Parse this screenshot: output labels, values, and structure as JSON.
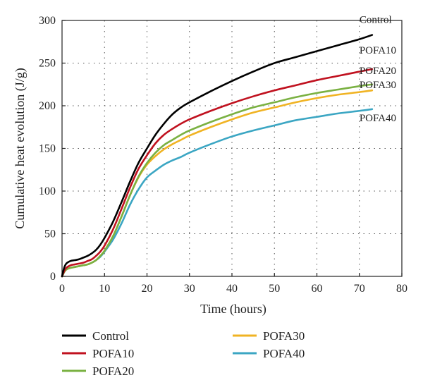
{
  "chart_data": {
    "type": "line",
    "xlabel": "Time (hours)",
    "ylabel": "Cumulative heat evolution (J/g)",
    "xlim": [
      0,
      80
    ],
    "ylim": [
      0,
      300
    ],
    "xticks": [
      0,
      10,
      20,
      30,
      40,
      50,
      60,
      70,
      80
    ],
    "yticks": [
      0,
      50,
      100,
      150,
      200,
      250,
      300
    ],
    "grid": true,
    "legend_position": "bottom",
    "series": [
      {
        "name": "Control",
        "color": "#000000",
        "end_label": "Control",
        "x": [
          0,
          0.5,
          1,
          2,
          3,
          4,
          5,
          6,
          7,
          8,
          9,
          10,
          12,
          14,
          16,
          18,
          20,
          22,
          24,
          26,
          28,
          30,
          35,
          40,
          45,
          50,
          55,
          60,
          65,
          70,
          73
        ],
        "y": [
          0,
          10,
          15,
          18,
          19,
          20,
          22,
          24,
          27,
          31,
          37,
          45,
          64,
          87,
          111,
          133,
          150,
          166,
          179,
          190,
          198,
          204,
          217,
          229,
          240,
          250,
          257,
          264,
          271,
          278,
          283
        ]
      },
      {
        "name": "POFA10",
        "color": "#c0111f",
        "end_label": "POFA10",
        "x": [
          0,
          0.5,
          1,
          2,
          3,
          4,
          5,
          6,
          7,
          8,
          9,
          10,
          12,
          14,
          16,
          18,
          20,
          22,
          24,
          26,
          28,
          30,
          35,
          40,
          45,
          50,
          55,
          60,
          65,
          70,
          73
        ],
        "y": [
          0,
          6,
          10,
          13,
          14,
          15,
          16,
          18,
          20,
          24,
          29,
          36,
          55,
          79,
          104,
          126,
          142,
          156,
          166,
          173,
          179,
          184,
          194,
          203,
          211,
          218,
          224,
          230,
          235,
          240,
          243
        ]
      },
      {
        "name": "POFA20",
        "color": "#7ab142",
        "end_label": "POFA20",
        "x": [
          0,
          0.5,
          1,
          2,
          3,
          4,
          5,
          6,
          7,
          8,
          9,
          10,
          12,
          14,
          16,
          18,
          20,
          22,
          24,
          26,
          28,
          30,
          35,
          40,
          45,
          50,
          55,
          60,
          65,
          70,
          73
        ],
        "y": [
          0,
          5,
          8,
          10,
          11,
          12,
          13,
          14,
          16,
          19,
          24,
          30,
          47,
          70,
          95,
          117,
          133,
          145,
          154,
          160,
          166,
          171,
          181,
          190,
          198,
          204,
          210,
          215,
          219,
          223,
          225
        ]
      },
      {
        "name": "POFA30",
        "color": "#f0b323",
        "end_label": "POFA30",
        "x": [
          0,
          0.5,
          1,
          2,
          3,
          4,
          5,
          6,
          7,
          8,
          9,
          10,
          12,
          14,
          16,
          18,
          20,
          22,
          24,
          26,
          28,
          30,
          35,
          40,
          45,
          50,
          55,
          60,
          65,
          70,
          73
        ],
        "y": [
          0,
          5,
          8,
          10,
          11,
          12,
          13,
          14,
          16,
          19,
          24,
          30,
          47,
          70,
          95,
          116,
          131,
          141,
          149,
          155,
          160,
          165,
          175,
          184,
          192,
          198,
          204,
          209,
          213,
          216,
          218
        ]
      },
      {
        "name": "POFA40",
        "color": "#3ba6c3",
        "end_label": "POFA40",
        "x": [
          0,
          0.5,
          1,
          2,
          3,
          4,
          5,
          6,
          7,
          8,
          9,
          10,
          12,
          14,
          16,
          18,
          20,
          22,
          24,
          26,
          28,
          30,
          35,
          40,
          45,
          50,
          55,
          60,
          65,
          70,
          73
        ],
        "y": [
          0,
          5,
          8,
          10,
          11,
          12,
          13,
          14,
          16,
          19,
          23,
          29,
          43,
          62,
          84,
          102,
          116,
          124,
          131,
          136,
          140,
          145,
          155,
          164,
          171,
          177,
          183,
          187,
          191,
          194,
          196
        ]
      }
    ]
  }
}
